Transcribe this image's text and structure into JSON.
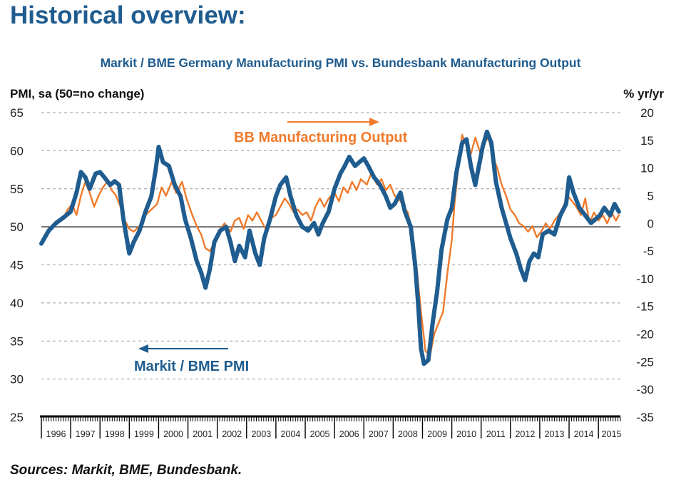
{
  "heading": "Historical overview:",
  "source": "Sources: Markit, BME, Bundesbank.",
  "colors": {
    "pmi": "#1f5c8f",
    "output": "#f07a2a",
    "heading": "#1f5c8f"
  },
  "chart_data": {
    "type": "line",
    "title": "Markit / BME Germany Manufacturing PMI vs. Bundesbank Manufacturing Output",
    "ylabel_left": "PMI, sa (50=no change)",
    "ylabel_right": "% yr/yr",
    "ylim_left": [
      25,
      65
    ],
    "ylim_right": [
      -35,
      20
    ],
    "yticks_left": [
      25,
      30,
      35,
      40,
      45,
      50,
      55,
      60,
      65
    ],
    "yticks_right": [
      -35,
      -30,
      -25,
      -20,
      -15,
      -10,
      -5,
      0,
      5,
      10,
      15,
      20
    ],
    "xlim": [
      1996.0,
      2015.75
    ],
    "years": [
      "1996",
      "1997",
      "1998",
      "1999",
      "2000",
      "2001",
      "2002",
      "2003",
      "2004",
      "2005",
      "2006",
      "2007",
      "2008",
      "2009",
      "2010",
      "2011",
      "2012",
      "2013",
      "2014",
      "2015"
    ],
    "grid": "horizontal dashed",
    "annotations": [
      {
        "text": "BB Manufacturing Output",
        "series": "output",
        "arrow": "right"
      },
      {
        "text": "Markit / BME PMI",
        "series": "pmi",
        "arrow": "left"
      }
    ],
    "series": [
      {
        "key": "pmi",
        "name": "Markit / BME PMI",
        "axis": "left",
        "points": [
          [
            1996.0,
            47.8
          ],
          [
            1996.25,
            49.5
          ],
          [
            1996.5,
            50.5
          ],
          [
            1996.75,
            51.2
          ],
          [
            1997.0,
            52.0
          ],
          [
            1997.2,
            54.5
          ],
          [
            1997.35,
            57.2
          ],
          [
            1997.5,
            56.5
          ],
          [
            1997.65,
            55.0
          ],
          [
            1997.85,
            57.0
          ],
          [
            1998.0,
            57.2
          ],
          [
            1998.15,
            56.5
          ],
          [
            1998.35,
            55.5
          ],
          [
            1998.5,
            56.0
          ],
          [
            1998.65,
            55.5
          ],
          [
            1998.8,
            51.0
          ],
          [
            1999.0,
            46.5
          ],
          [
            1999.15,
            48.0
          ],
          [
            1999.35,
            49.5
          ],
          [
            1999.55,
            52.0
          ],
          [
            1999.75,
            54.0
          ],
          [
            1999.9,
            57.5
          ],
          [
            2000.0,
            60.5
          ],
          [
            2000.15,
            58.5
          ],
          [
            2000.35,
            58.0
          ],
          [
            2000.55,
            55.5
          ],
          [
            2000.75,
            54.0
          ],
          [
            2000.9,
            51.0
          ],
          [
            2001.1,
            48.5
          ],
          [
            2001.3,
            45.5
          ],
          [
            2001.45,
            44.0
          ],
          [
            2001.6,
            42.0
          ],
          [
            2001.75,
            44.5
          ],
          [
            2001.9,
            48.0
          ],
          [
            2002.1,
            49.5
          ],
          [
            2002.3,
            50.0
          ],
          [
            2002.45,
            48.0
          ],
          [
            2002.6,
            45.5
          ],
          [
            2002.75,
            47.5
          ],
          [
            2002.95,
            46.0
          ],
          [
            2003.1,
            49.5
          ],
          [
            2003.3,
            46.5
          ],
          [
            2003.45,
            45.0
          ],
          [
            2003.6,
            48.5
          ],
          [
            2003.8,
            51.0
          ],
          [
            2004.0,
            54.0
          ],
          [
            2004.15,
            55.5
          ],
          [
            2004.35,
            56.5
          ],
          [
            2004.5,
            54.0
          ],
          [
            2004.7,
            51.5
          ],
          [
            2004.9,
            50.0
          ],
          [
            2005.1,
            49.5
          ],
          [
            2005.3,
            50.5
          ],
          [
            2005.45,
            49.0
          ],
          [
            2005.6,
            50.5
          ],
          [
            2005.8,
            52.0
          ],
          [
            2006.0,
            55.0
          ],
          [
            2006.2,
            57.0
          ],
          [
            2006.35,
            58.0
          ],
          [
            2006.5,
            59.2
          ],
          [
            2006.7,
            58.0
          ],
          [
            2006.85,
            58.5
          ],
          [
            2007.0,
            59.0
          ],
          [
            2007.15,
            58.0
          ],
          [
            2007.35,
            56.5
          ],
          [
            2007.55,
            55.5
          ],
          [
            2007.75,
            54.0
          ],
          [
            2007.9,
            52.5
          ],
          [
            2008.05,
            53.0
          ],
          [
            2008.25,
            54.5
          ],
          [
            2008.4,
            52.0
          ],
          [
            2008.6,
            50.0
          ],
          [
            2008.75,
            45.0
          ],
          [
            2008.85,
            40.0
          ],
          [
            2008.95,
            34.0
          ],
          [
            2009.05,
            32.0
          ],
          [
            2009.2,
            32.5
          ],
          [
            2009.35,
            37.5
          ],
          [
            2009.5,
            41.5
          ],
          [
            2009.65,
            47.0
          ],
          [
            2009.85,
            51.0
          ],
          [
            2010.0,
            52.5
          ],
          [
            2010.15,
            57.0
          ],
          [
            2010.35,
            61.0
          ],
          [
            2010.5,
            61.5
          ],
          [
            2010.65,
            58.0
          ],
          [
            2010.8,
            55.5
          ],
          [
            2010.9,
            57.5
          ],
          [
            2011.05,
            60.5
          ],
          [
            2011.2,
            62.5
          ],
          [
            2011.35,
            61.0
          ],
          [
            2011.5,
            56.0
          ],
          [
            2011.7,
            52.5
          ],
          [
            2011.85,
            50.5
          ],
          [
            2012.0,
            48.5
          ],
          [
            2012.2,
            46.5
          ],
          [
            2012.35,
            44.5
          ],
          [
            2012.5,
            43.0
          ],
          [
            2012.65,
            45.5
          ],
          [
            2012.8,
            46.5
          ],
          [
            2012.95,
            46.0
          ],
          [
            2013.1,
            49.0
          ],
          [
            2013.3,
            49.5
          ],
          [
            2013.5,
            49.0
          ],
          [
            2013.7,
            51.5
          ],
          [
            2013.9,
            53.0
          ],
          [
            2014.0,
            56.5
          ],
          [
            2014.15,
            54.5
          ],
          [
            2014.35,
            52.5
          ],
          [
            2014.55,
            51.5
          ],
          [
            2014.75,
            50.5
          ],
          [
            2014.9,
            51.0
          ],
          [
            2015.05,
            51.5
          ],
          [
            2015.2,
            52.5
          ],
          [
            2015.4,
            51.5
          ],
          [
            2015.55,
            53.0
          ],
          [
            2015.7,
            52.0
          ]
        ]
      },
      {
        "key": "output",
        "name": "BB Manufacturing Output",
        "axis": "right",
        "points": [
          [
            1996.75,
            1.0
          ],
          [
            1996.9,
            2.5
          ],
          [
            1997.05,
            3.5
          ],
          [
            1997.2,
            1.5
          ],
          [
            1997.35,
            5.0
          ],
          [
            1997.5,
            7.5
          ],
          [
            1997.65,
            5.5
          ],
          [
            1997.8,
            3.0
          ],
          [
            1997.95,
            5.0
          ],
          [
            1998.1,
            6.5
          ],
          [
            1998.25,
            7.5
          ],
          [
            1998.4,
            6.0
          ],
          [
            1998.55,
            5.0
          ],
          [
            1998.7,
            3.0
          ],
          [
            1998.85,
            0.5
          ],
          [
            1999.0,
            -1.0
          ],
          [
            1999.15,
            -1.5
          ],
          [
            1999.35,
            -0.5
          ],
          [
            1999.55,
            1.5
          ],
          [
            1999.75,
            2.5
          ],
          [
            1999.95,
            3.5
          ],
          [
            2000.1,
            6.5
          ],
          [
            2000.25,
            5.0
          ],
          [
            2000.45,
            7.5
          ],
          [
            2000.6,
            5.5
          ],
          [
            2000.8,
            7.5
          ],
          [
            2000.95,
            4.5
          ],
          [
            2001.15,
            1.5
          ],
          [
            2001.3,
            -0.5
          ],
          [
            2001.45,
            -2.0
          ],
          [
            2001.6,
            -4.5
          ],
          [
            2001.75,
            -5.0
          ],
          [
            2001.9,
            -3.5
          ],
          [
            2002.1,
            -1.0
          ],
          [
            2002.25,
            0.0
          ],
          [
            2002.45,
            -1.5
          ],
          [
            2002.6,
            0.5
          ],
          [
            2002.75,
            1.0
          ],
          [
            2002.9,
            -1.0
          ],
          [
            2003.05,
            1.5
          ],
          [
            2003.2,
            0.5
          ],
          [
            2003.35,
            2.0
          ],
          [
            2003.55,
            0.0
          ],
          [
            2003.7,
            -1.5
          ],
          [
            2003.85,
            1.0
          ],
          [
            2004.0,
            1.5
          ],
          [
            2004.15,
            3.0
          ],
          [
            2004.3,
            4.5
          ],
          [
            2004.45,
            3.5
          ],
          [
            2004.6,
            2.0
          ],
          [
            2004.75,
            2.5
          ],
          [
            2004.9,
            1.5
          ],
          [
            2005.05,
            2.0
          ],
          [
            2005.2,
            0.5
          ],
          [
            2005.35,
            3.0
          ],
          [
            2005.5,
            4.5
          ],
          [
            2005.65,
            3.0
          ],
          [
            2005.8,
            4.5
          ],
          [
            2006.0,
            5.5
          ],
          [
            2006.15,
            4.0
          ],
          [
            2006.3,
            6.5
          ],
          [
            2006.45,
            5.5
          ],
          [
            2006.6,
            7.5
          ],
          [
            2006.75,
            6.0
          ],
          [
            2006.9,
            8.0
          ],
          [
            2007.1,
            7.0
          ],
          [
            2007.25,
            9.0
          ],
          [
            2007.45,
            7.0
          ],
          [
            2007.6,
            8.0
          ],
          [
            2007.75,
            6.0
          ],
          [
            2007.9,
            7.0
          ],
          [
            2008.05,
            5.0
          ],
          [
            2008.2,
            4.5
          ],
          [
            2008.35,
            3.0
          ],
          [
            2008.5,
            2.0
          ],
          [
            2008.65,
            -1.5
          ],
          [
            2008.8,
            -8.0
          ],
          [
            2008.95,
            -16.0
          ],
          [
            2009.1,
            -23.0
          ],
          [
            2009.25,
            -24.0
          ],
          [
            2009.4,
            -20.0
          ],
          [
            2009.55,
            -18.0
          ],
          [
            2009.7,
            -16.0
          ],
          [
            2009.85,
            -9.0
          ],
          [
            2010.0,
            -3.0
          ],
          [
            2010.1,
            4.0
          ],
          [
            2010.25,
            11.5
          ],
          [
            2010.35,
            16.0
          ],
          [
            2010.5,
            14.0
          ],
          [
            2010.65,
            12.5
          ],
          [
            2010.8,
            15.5
          ],
          [
            2010.95,
            13.0
          ],
          [
            2011.1,
            14.5
          ],
          [
            2011.25,
            15.5
          ],
          [
            2011.4,
            12.0
          ],
          [
            2011.55,
            10.0
          ],
          [
            2011.7,
            7.0
          ],
          [
            2011.85,
            5.0
          ],
          [
            2012.0,
            2.5
          ],
          [
            2012.15,
            1.5
          ],
          [
            2012.3,
            0.0
          ],
          [
            2012.45,
            -0.5
          ],
          [
            2012.6,
            -1.5
          ],
          [
            2012.75,
            -0.5
          ],
          [
            2012.9,
            -2.5
          ],
          [
            2013.05,
            -1.5
          ],
          [
            2013.2,
            0.0
          ],
          [
            2013.35,
            -1.0
          ],
          [
            2013.5,
            0.5
          ],
          [
            2013.65,
            1.5
          ],
          [
            2013.8,
            3.0
          ],
          [
            2013.95,
            5.0
          ],
          [
            2014.1,
            4.0
          ],
          [
            2014.25,
            3.0
          ],
          [
            2014.4,
            1.5
          ],
          [
            2014.55,
            4.5
          ],
          [
            2014.7,
            0.0
          ],
          [
            2014.85,
            2.0
          ],
          [
            2015.0,
            0.5
          ],
          [
            2015.15,
            1.5
          ],
          [
            2015.3,
            0.0
          ],
          [
            2015.45,
            2.0
          ],
          [
            2015.6,
            0.5
          ],
          [
            2015.7,
            1.5
          ]
        ]
      }
    ]
  }
}
